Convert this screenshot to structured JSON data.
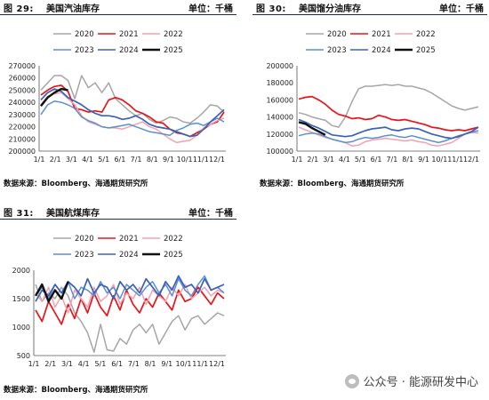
{
  "colors": {
    "2020": "#a6a6a6",
    "2021": "#e8141b",
    "2022": "#f4a0b0",
    "2023": "#5b8fd3",
    "2024": "#3c62b5",
    "2025": "#111111"
  },
  "watermark": "公众号 · 能源研发中心",
  "panels": [
    {
      "fig": "图 29:",
      "title": "美国汽油库存",
      "unit": "单位：千桶",
      "source": "数据来源：Bloomberg、海通期货研究所"
    },
    {
      "fig": "图 30:",
      "title": "美国馏分油库存",
      "unit": "单位：千桶",
      "source": "数据来源：Bloomberg、海通期货研究所"
    },
    {
      "fig": "图 31:",
      "title": "美国航煤库存",
      "unit": "单位：千桶",
      "source": "数据来源：Bloomberg、海通期货研究所"
    }
  ],
  "chart_data": [
    {
      "type": "line",
      "title": "美国汽油库存",
      "x_ticks": [
        "1/1",
        "2/1",
        "3/1",
        "4/1",
        "5/1",
        "6/1",
        "7/1",
        "8/1",
        "9/1",
        "10/1",
        "11/1",
        "12/1"
      ],
      "ylim": [
        200000,
        270000
      ],
      "y_ticks": [
        200000,
        210000,
        220000,
        230000,
        240000,
        250000,
        260000,
        270000
      ],
      "legend": [
        "2020",
        "2021",
        "2022",
        "2023",
        "2024",
        "2025"
      ],
      "series": [
        {
          "name": "2020",
          "values": [
            250000,
            256000,
            262000,
            262000,
            258000,
            243000,
            262000,
            252000,
            256000,
            248000,
            256000,
            243000,
            238000,
            233000,
            229000,
            231000,
            226000,
            223000,
            225000,
            228000,
            227000,
            224000,
            223000,
            227000,
            232000,
            238000,
            237000,
            232000
          ]
        },
        {
          "name": "2021",
          "values": [
            246000,
            250000,
            253000,
            254000,
            249000,
            235000,
            234000,
            232000,
            233000,
            232000,
            242000,
            244000,
            242000,
            238000,
            233000,
            231000,
            228000,
            224000,
            223000,
            218000,
            215000,
            214000,
            212000,
            215000,
            218000,
            222000,
            224000,
            232000
          ]
        },
        {
          "name": "2022",
          "values": [
            238000,
            245000,
            247000,
            248000,
            243000,
            238000,
            229000,
            224000,
            222000,
            220000,
            219000,
            219000,
            218000,
            220000,
            222000,
            224000,
            220000,
            218000,
            214000,
            210000,
            207000,
            208000,
            209000,
            213000,
            219000,
            222000,
            225000,
            227000
          ]
        },
        {
          "name": "2023",
          "values": [
            230000,
            238000,
            241000,
            240000,
            238000,
            235000,
            228000,
            225000,
            223000,
            220000,
            219000,
            220000,
            221000,
            222000,
            220000,
            218000,
            216000,
            215000,
            214000,
            213000,
            217000,
            219000,
            222000,
            223000,
            221000,
            224000,
            227000,
            224000
          ]
        },
        {
          "name": "2024",
          "values": [
            242000,
            248000,
            251000,
            249000,
            244000,
            241000,
            238000,
            234000,
            231000,
            229000,
            229000,
            228000,
            226000,
            227000,
            229000,
            226000,
            222000,
            220000,
            219000,
            218000,
            216000,
            214000,
            212000,
            213000,
            218000,
            224000,
            229000,
            234000
          ]
        },
        {
          "name": "2025",
          "values": [
            237000,
            244000,
            248000,
            251000,
            250000
          ]
        }
      ]
    },
    {
      "type": "line",
      "title": "美国馏分油库存",
      "x_ticks": [
        "1/1",
        "2/1",
        "3/1",
        "4/1",
        "5/1",
        "6/1",
        "7/1",
        "8/1",
        "9/1",
        "10/1",
        "11/1",
        "12/1"
      ],
      "ylim": [
        100000,
        200000
      ],
      "y_ticks": [
        100000,
        120000,
        140000,
        160000,
        180000,
        200000
      ],
      "legend": [
        "2020",
        "2021",
        "2022",
        "2023",
        "2024",
        "2025"
      ],
      "series": [
        {
          "name": "2020",
          "values": [
            145000,
            143000,
            140000,
            138000,
            136000,
            130000,
            128000,
            140000,
            158000,
            173000,
            176000,
            176000,
            177000,
            178000,
            177000,
            178000,
            176000,
            176000,
            174000,
            172000,
            168000,
            163000,
            158000,
            153000,
            150000,
            148000,
            150000,
            152000
          ]
        },
        {
          "name": "2021",
          "values": [
            161000,
            163000,
            164000,
            160000,
            155000,
            148000,
            143000,
            141000,
            138000,
            139000,
            137000,
            138000,
            142000,
            140000,
            137000,
            136000,
            137000,
            135000,
            133000,
            131000,
            128000,
            127000,
            125000,
            124000,
            125000,
            124000,
            126000,
            128000
          ]
        },
        {
          "name": "2022",
          "values": [
            128000,
            125000,
            122000,
            119000,
            116000,
            114000,
            112000,
            110000,
            106000,
            107000,
            111000,
            113000,
            114000,
            115000,
            114000,
            113000,
            112000,
            113000,
            111000,
            110000,
            107000,
            106000,
            108000,
            110000,
            115000,
            120000,
            122000,
            121000
          ]
        },
        {
          "name": "2023",
          "values": [
            118000,
            120000,
            121000,
            120000,
            117000,
            114000,
            112000,
            110000,
            111000,
            114000,
            116000,
            115000,
            116000,
            118000,
            119000,
            117000,
            116000,
            118000,
            116000,
            114000,
            112000,
            110000,
            112000,
            115000,
            118000,
            120000,
            122000,
            124000
          ]
        },
        {
          "name": "2024",
          "values": [
            137000,
            134000,
            130000,
            127000,
            123000,
            119000,
            118000,
            117000,
            118000,
            121000,
            124000,
            126000,
            127000,
            128000,
            125000,
            124000,
            126000,
            127000,
            126000,
            123000,
            120000,
            118000,
            116000,
            115000,
            117000,
            120000,
            123000,
            128000
          ]
        },
        {
          "name": "2025",
          "values": [
            134000,
            132000,
            127000,
            123000,
            119000
          ]
        }
      ]
    },
    {
      "type": "line",
      "title": "美国航煤库存",
      "x_ticks": [
        "1/1",
        "2/1",
        "3/1",
        "4/1",
        "5/1",
        "6/1",
        "7/1",
        "8/1",
        "9/1",
        "10/1",
        "11/1",
        "12/1"
      ],
      "ylim": [
        500,
        2000
      ],
      "y_ticks": [
        500,
        1000,
        1500,
        2000
      ],
      "legend": [
        "2020",
        "2021",
        "2022",
        "2023",
        "2024",
        "2025"
      ],
      "series": [
        {
          "name": "2020",
          "values": [
            1750,
            1450,
            1600,
            1500,
            1700,
            1550,
            1250,
            1100,
            900,
            560,
            1050,
            600,
            580,
            800,
            700,
            950,
            1050,
            900,
            1050,
            700,
            900,
            1100,
            1200,
            950,
            1150,
            1200,
            1050,
            1150,
            1250,
            1200
          ]
        },
        {
          "name": "2021",
          "values": [
            1300,
            1100,
            1450,
            1250,
            1050,
            1400,
            1150,
            1500,
            1250,
            1600,
            1350,
            1200,
            1550,
            1300,
            1650,
            1400,
            1250,
            1500,
            1350,
            1600,
            1450,
            1300,
            1650,
            1450,
            1500,
            1700,
            1550,
            1400,
            1600,
            1500
          ]
        },
        {
          "name": "2022",
          "values": [
            1600,
            1450,
            1700,
            1350,
            1550,
            1250,
            1650,
            1500,
            1350,
            1700,
            1450,
            1550,
            1750,
            1400,
            1600,
            1500,
            1700,
            1400,
            1650,
            1550,
            1450,
            1700,
            1550,
            1750,
            1500,
            1600,
            1700,
            1550,
            1650,
            1600
          ]
        },
        {
          "name": "2023",
          "values": [
            1550,
            1700,
            1500,
            1750,
            1600,
            1800,
            1500,
            1700,
            1650,
            1550,
            1800,
            1600,
            1700,
            1500,
            1750,
            1650,
            1550,
            1700,
            1800,
            1600,
            1750,
            1550,
            1850,
            1650,
            1550,
            1750,
            1900,
            1650,
            1700,
            1600
          ]
        },
        {
          "name": "2024",
          "values": [
            1450,
            1650,
            1550,
            1750,
            1600,
            1800,
            1700,
            1550,
            1850,
            1600,
            1750,
            1700,
            1500,
            1800,
            1650,
            1750,
            1600,
            1850,
            1700,
            1550,
            1800,
            1650,
            1900,
            1700,
            1750,
            1600,
            1850,
            1650,
            1700,
            1750
          ]
        },
        {
          "name": "2025",
          "values": [
            1550,
            1750,
            1450,
            1650,
            1500,
            1800
          ]
        }
      ]
    }
  ]
}
